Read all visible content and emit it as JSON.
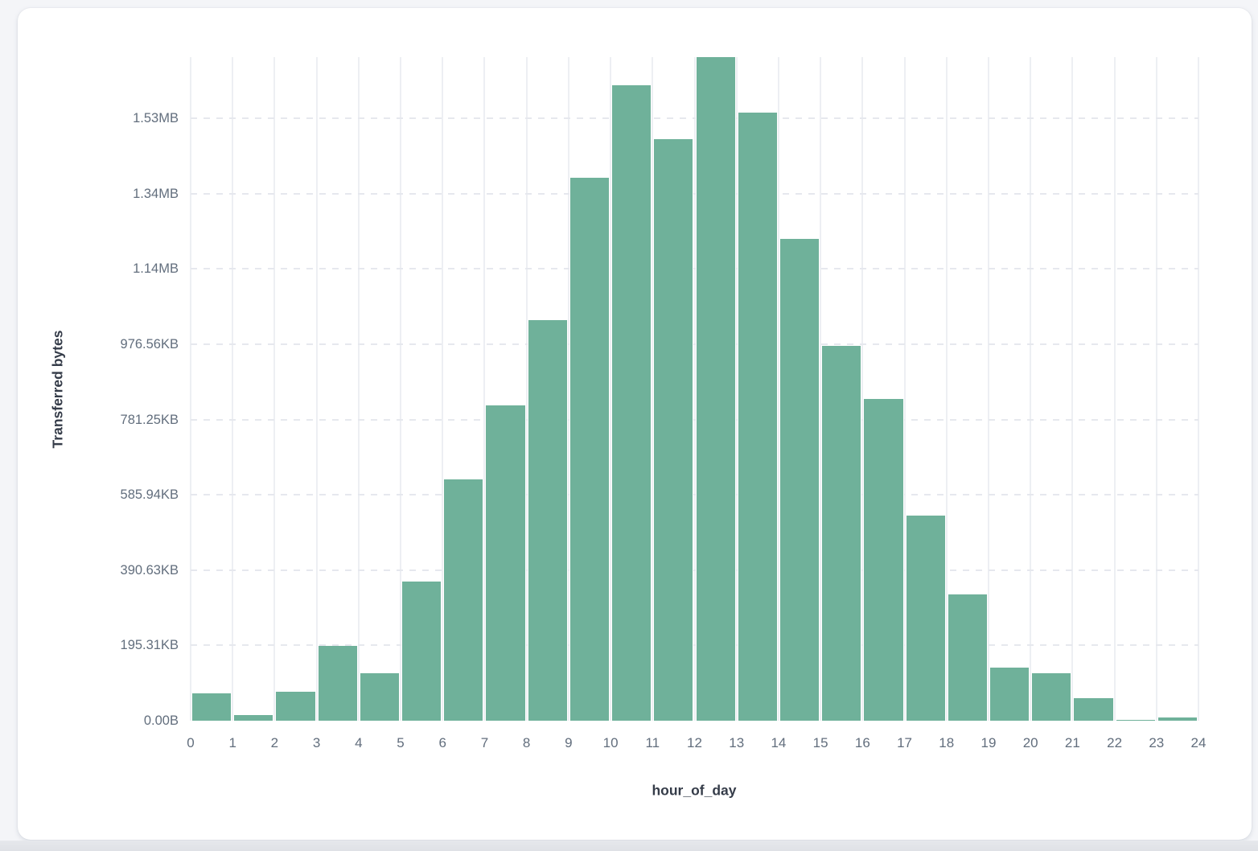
{
  "page": {
    "background_color": "#f4f5f8",
    "card_background_color": "#ffffff"
  },
  "chart_data": {
    "type": "bar",
    "title": "",
    "xlabel": "hour_of_day",
    "ylabel": "Transferred bytes",
    "bar_color": "#6fb19a",
    "grid": true,
    "legend_position": "none",
    "x_range": [
      0,
      24
    ],
    "y_max_bytes": 1763000,
    "x_tick_labels": [
      "0",
      "1",
      "2",
      "3",
      "4",
      "5",
      "6",
      "7",
      "8",
      "9",
      "10",
      "11",
      "12",
      "13",
      "14",
      "15",
      "16",
      "17",
      "18",
      "19",
      "20",
      "21",
      "22",
      "23",
      "24"
    ],
    "y_ticks": [
      {
        "value": 0,
        "label": "0.00B"
      },
      {
        "value": 200000,
        "label": "195.31KB"
      },
      {
        "value": 400000,
        "label": "390.63KB"
      },
      {
        "value": 600000,
        "label": "585.94KB"
      },
      {
        "value": 800000,
        "label": "781.25KB"
      },
      {
        "value": 1000000,
        "label": "976.56KB"
      },
      {
        "value": 1200000,
        "label": "1.14MB"
      },
      {
        "value": 1400000,
        "label": "1.34MB"
      },
      {
        "value": 1600000,
        "label": "1.53MB"
      }
    ],
    "categories": [
      0,
      1,
      2,
      3,
      4,
      5,
      6,
      7,
      8,
      9,
      10,
      11,
      12,
      13,
      14,
      15,
      16,
      17,
      18,
      19,
      20,
      21,
      22,
      23
    ],
    "values_bytes": [
      71700,
      14600,
      76000,
      199500,
      125200,
      369200,
      641000,
      838000,
      1064800,
      1441600,
      1687800,
      1544400,
      1762700,
      1615000,
      1281100,
      996400,
      855100,
      544700,
      335000,
      140200,
      125200,
      58900,
      3200,
      9600
    ]
  }
}
